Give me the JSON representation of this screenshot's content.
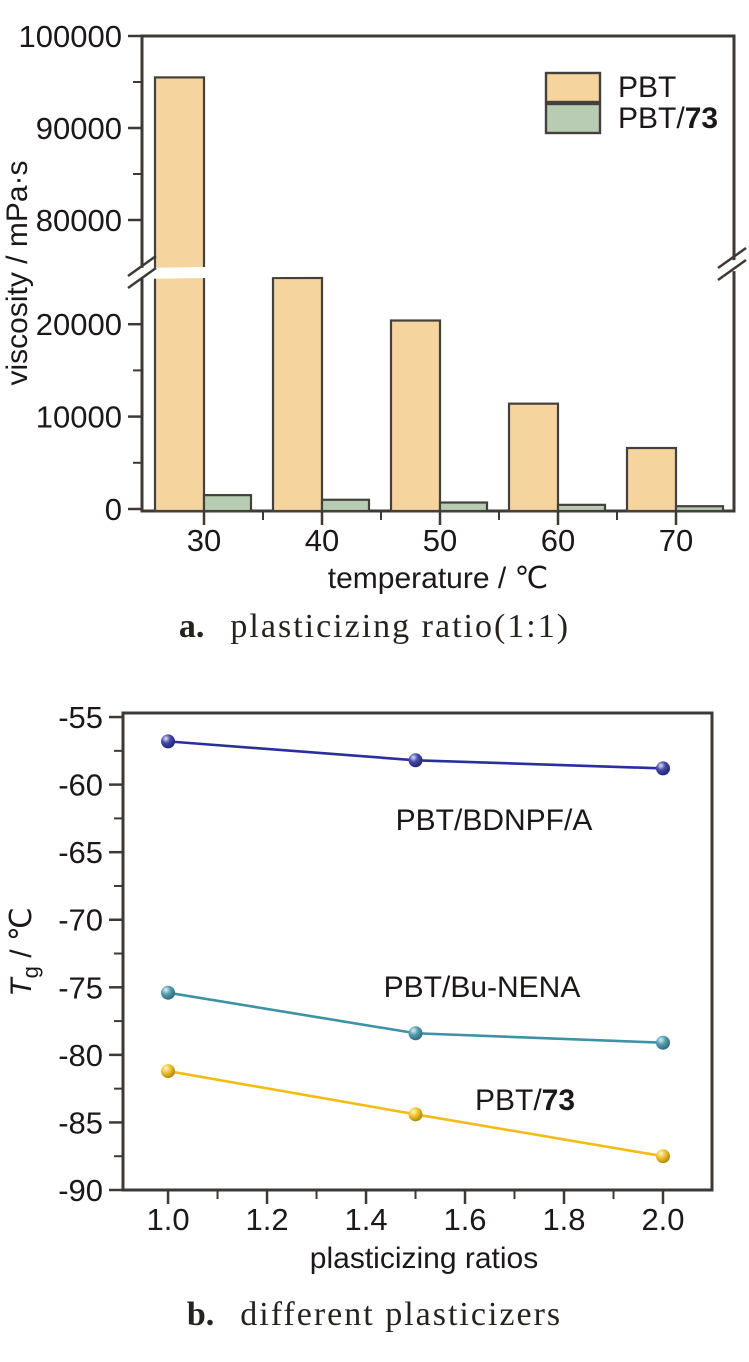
{
  "theme": {
    "background": "#ffffff",
    "axis_color": "#3e3935",
    "text_color": "#1b1817",
    "bar_stroke": "#44403b",
    "caption_color": "#262220"
  },
  "chart_data": [
    {
      "id": "viscosity-bars",
      "type": "bar",
      "caption": {
        "label": "a.",
        "text": "plasticizing ratio(1:1)"
      },
      "xlabel": "temperature / ℃",
      "ylabel": "viscosity / mPa·s",
      "categories": [
        "30",
        "40",
        "50",
        "60",
        "70"
      ],
      "series": [
        {
          "name": "PBT",
          "fill": "#F5D49E",
          "values": [
            95500,
            25300,
            20400,
            11400,
            6600
          ]
        },
        {
          "name": "PBT/73",
          "name_bold_part": "73",
          "fill": "#B7CCB2",
          "values": [
            1500,
            1000,
            700,
            450,
            300
          ]
        }
      ],
      "axis_break": {
        "lower_max": 25000,
        "upper_min": 75000
      },
      "y_major_lower": [
        0,
        10000,
        20000
      ],
      "y_minor_lower": [
        5000,
        15000
      ],
      "y_major_upper": [
        80000,
        90000,
        100000
      ],
      "y_minor_upper": [
        85000,
        95000
      ],
      "legend_position": "top-right"
    },
    {
      "id": "tg-lines",
      "type": "line",
      "caption": {
        "label": "b.",
        "text": "different plasticizers"
      },
      "xlabel": "plasticizing ratios",
      "ylabel": "Tg / ℃",
      "ylabel_parts": {
        "symbol": "T",
        "subscript": "g",
        "rest": " / ℃"
      },
      "x": [
        1.0,
        1.5,
        2.0
      ],
      "series": [
        {
          "name": "PBT/BDNPF/A",
          "color": "#2B2F9E",
          "values": [
            -56.8,
            -58.2,
            -58.8
          ]
        },
        {
          "name": "PBT/Bu-NENA",
          "color": "#3E92A6",
          "values": [
            -75.4,
            -78.4,
            -79.1
          ]
        },
        {
          "name": "PBT/73",
          "name_bold_part": "73",
          "color": "#F2BC13",
          "values": [
            -81.2,
            -84.4,
            -87.5
          ]
        }
      ],
      "ylim": [
        -90,
        -54.7
      ],
      "xlim": [
        0.909,
        2.099
      ],
      "x_ticks": [
        1.0,
        1.2,
        1.4,
        1.6,
        1.8,
        2.0
      ],
      "x_tick_labels": [
        "1.0",
        "1.2",
        "1.4",
        "1.6",
        "1.8",
        "2.0"
      ],
      "x_minor": [
        1.1,
        1.3,
        1.5,
        1.7,
        1.9
      ],
      "y_major": [
        -55,
        -60,
        -65,
        -70,
        -75,
        -80,
        -85,
        -90
      ],
      "y_minor": [
        -57.5,
        -62.5,
        -67.5,
        -72.5,
        -77.5,
        -82.5,
        -87.5
      ],
      "grid": "off"
    }
  ]
}
